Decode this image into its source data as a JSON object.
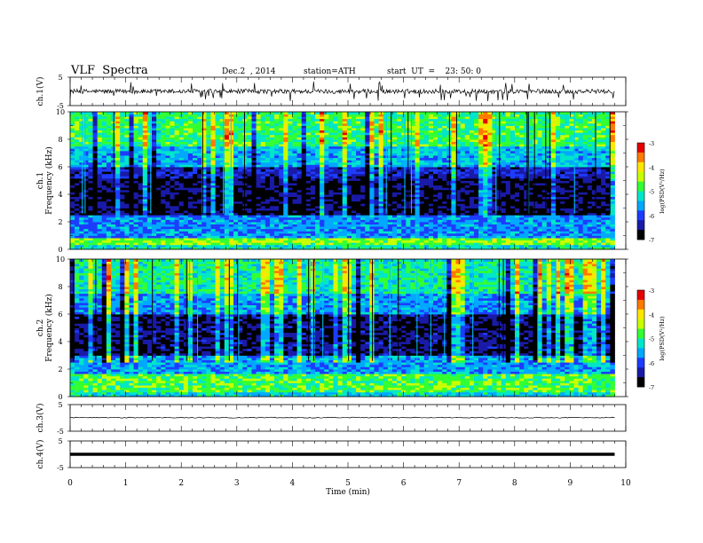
{
  "header": {
    "title": "VLF  Spectra",
    "date": "Dec.2  , 2014",
    "station": "station=ATH",
    "start": "start  UT  =    23: 50: 0"
  },
  "colors": {
    "spec_ramp": [
      "#000000",
      "#1a1aa8",
      "#1c3cff",
      "#00a8ff",
      "#00e6c8",
      "#33ff33",
      "#c8ff00",
      "#ffe600",
      "#ff7a00",
      "#e60000"
    ],
    "colorbar_high": "#ff0000",
    "colorbar_low": "#000066"
  },
  "chart_data": [
    {
      "type": "line",
      "name": "ch1-waveform",
      "ylabel": "ch.1(V)",
      "yticks": [
        "5",
        "-5"
      ],
      "ylim": [
        -5,
        5
      ],
      "description_level": "baseline near 0 V with frequent spikes up to about +3 V and down to about -3 V",
      "x_range_min": [
        0,
        9.8
      ]
    },
    {
      "type": "heatmap",
      "name": "ch1-spectrogram",
      "ylabel": "ch.1\nFrequency  (kHz)",
      "ylabel_top": "ch.1",
      "ylabel_bottom": "Frequency  (kHz)",
      "ylim": [
        0,
        10
      ],
      "yticks": [
        "0",
        "2",
        "4",
        "6",
        "8",
        "10"
      ],
      "x_range_min": [
        0,
        9.8
      ],
      "colorbar": {
        "label": "log(PSD(V²/Hz)",
        "ticks": [
          "-3",
          "-4",
          "-5",
          "-6",
          "-7"
        ],
        "range": [
          -7,
          -3
        ]
      },
      "bands": [
        {
          "f_low": 0.0,
          "f_high": 0.3,
          "logpsd": -5.2
        },
        {
          "f_low": 0.3,
          "f_high": 0.9,
          "logpsd": -4.6
        },
        {
          "f_low": 0.9,
          "f_high": 2.5,
          "logpsd": -5.7
        },
        {
          "f_low": 2.5,
          "f_high": 5.2,
          "logpsd": -6.7
        },
        {
          "f_low": 5.2,
          "f_high": 6.0,
          "logpsd": -6.3
        },
        {
          "f_low": 6.0,
          "f_high": 7.5,
          "logpsd": -5.5
        },
        {
          "f_low": 7.5,
          "f_high": 10.0,
          "logpsd": -4.9
        }
      ]
    },
    {
      "type": "heatmap",
      "name": "ch2-spectrogram",
      "ylabel": "ch.2\nFrequency  (kHz)",
      "ylabel_top": "ch.2",
      "ylabel_bottom": "Frequency  (kHz)",
      "ylim": [
        0,
        10
      ],
      "yticks": [
        "0",
        "2",
        "4",
        "6",
        "8",
        "10"
      ],
      "x_range_min": [
        0,
        9.8
      ],
      "colorbar": {
        "label": "log(PSD(V²/Hz)",
        "ticks": [
          "-3",
          "-4",
          "-5",
          "-6",
          "-7"
        ],
        "range": [
          -7,
          -3
        ]
      },
      "bands": [
        {
          "f_low": 0.0,
          "f_high": 0.3,
          "logpsd": -5.3
        },
        {
          "f_low": 0.3,
          "f_high": 1.6,
          "logpsd": -4.8
        },
        {
          "f_low": 1.6,
          "f_high": 3.0,
          "logpsd": -5.6
        },
        {
          "f_low": 3.0,
          "f_high": 6.0,
          "logpsd": -6.6
        },
        {
          "f_low": 6.0,
          "f_high": 7.5,
          "logpsd": -5.7
        },
        {
          "f_low": 7.5,
          "f_high": 10.0,
          "logpsd": -5.1
        }
      ]
    },
    {
      "type": "line",
      "name": "ch3-waveform",
      "ylabel": "ch.3(V)",
      "yticks": [
        "5",
        "-5"
      ],
      "ylim": [
        -5,
        5
      ],
      "level_v": 0.1,
      "x_range_min": [
        0,
        9.8
      ]
    },
    {
      "type": "line",
      "name": "ch4-waveform",
      "ylabel": "ch.4(V)",
      "yticks": [
        "5",
        "-5"
      ],
      "ylim": [
        -5,
        5
      ],
      "level_v": 0.0,
      "x_range_min": [
        0,
        9.8
      ]
    }
  ],
  "xaxis": {
    "label": "Time  (min)",
    "ticks": [
      "0",
      "1",
      "2",
      "3",
      "4",
      "5",
      "6",
      "7",
      "8",
      "9",
      "10"
    ],
    "range": [
      0,
      10
    ]
  }
}
